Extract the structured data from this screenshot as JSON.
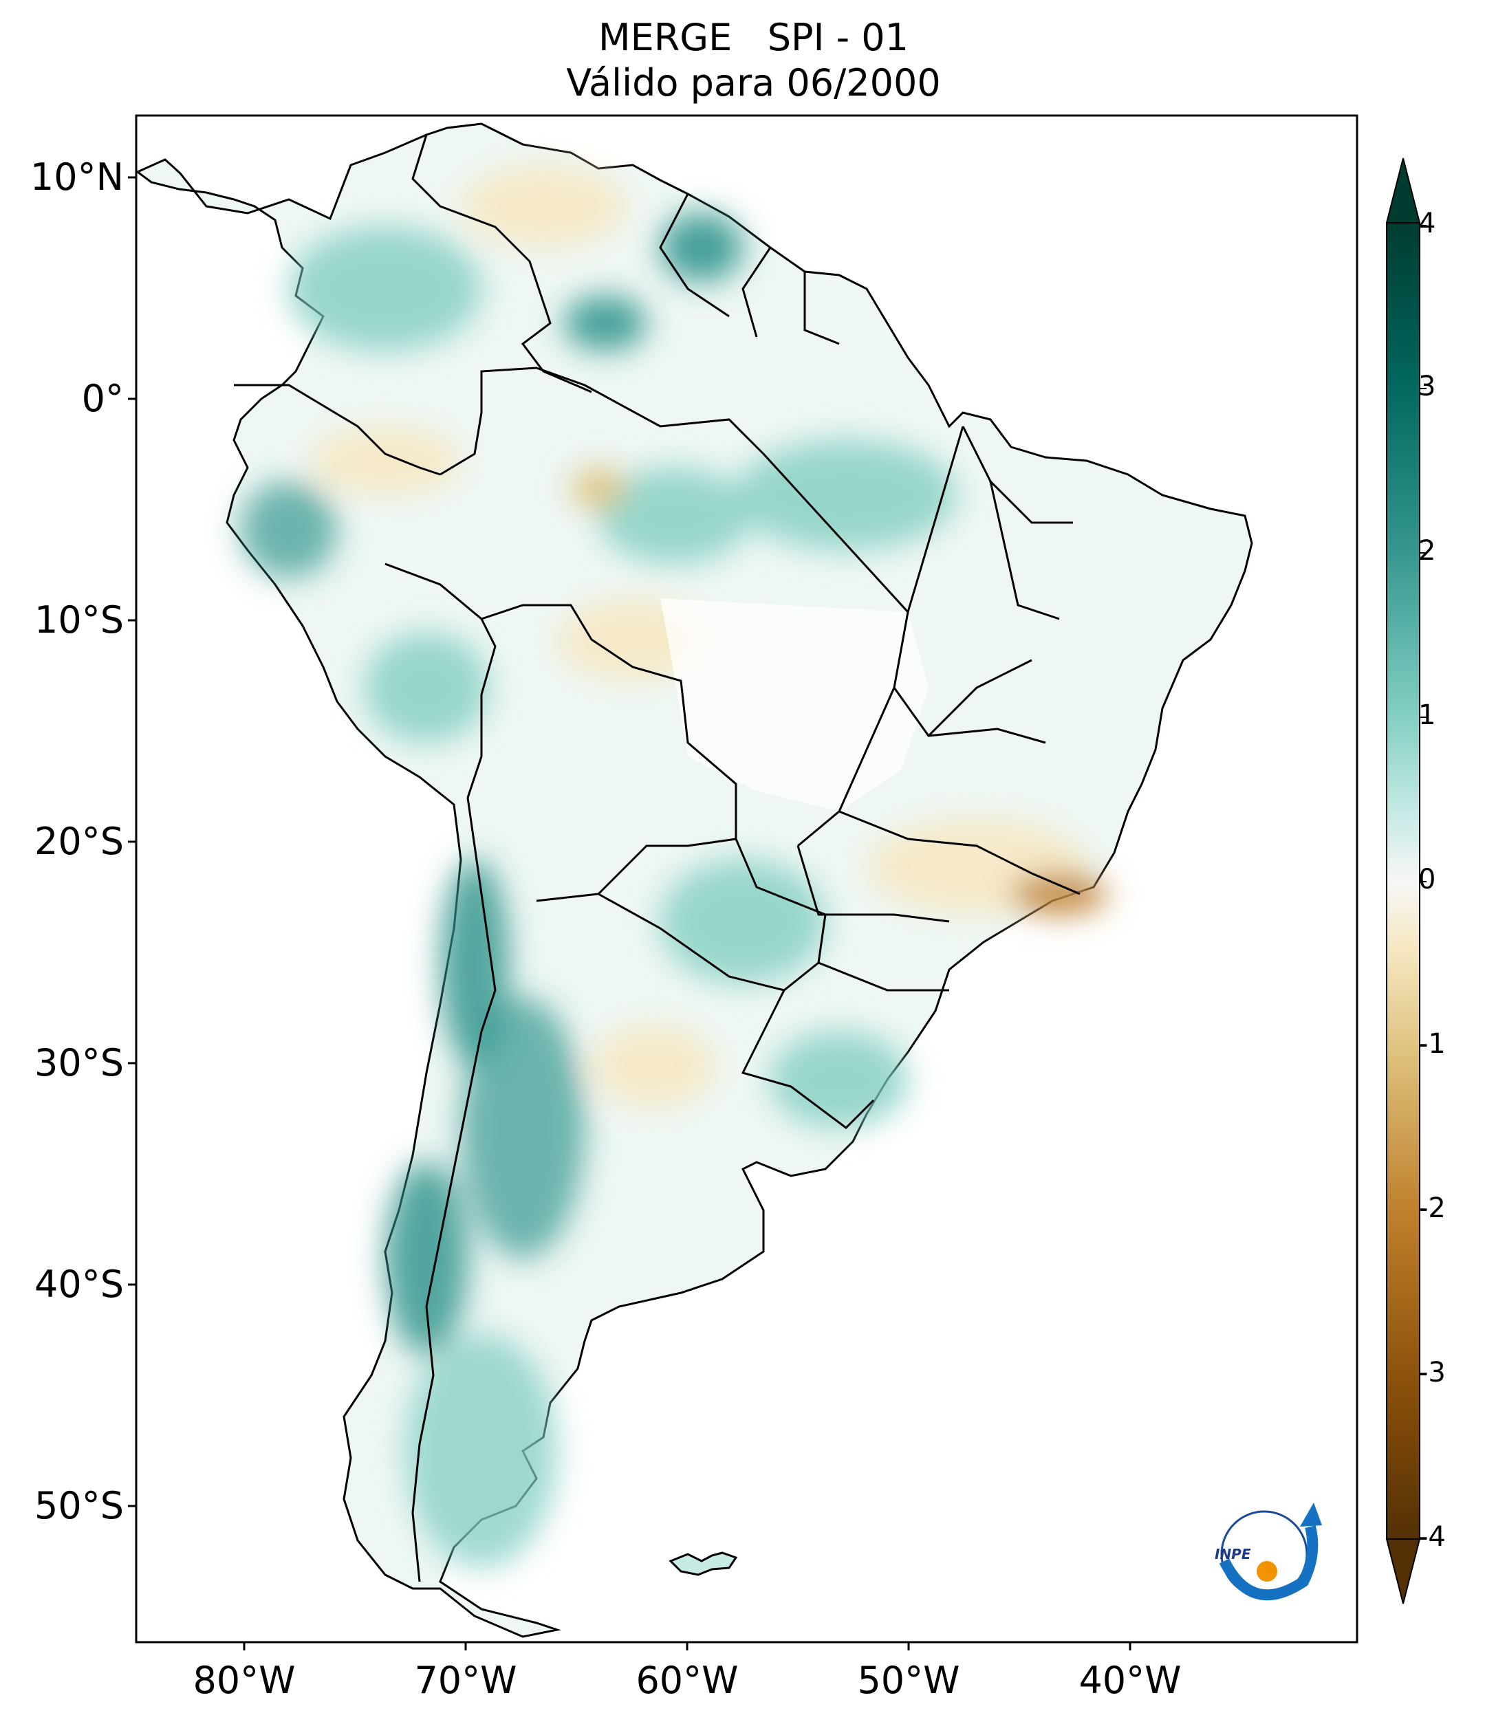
{
  "title": {
    "line1": "MERGE   SPI - 01",
    "line2": "Válido para 06/2000"
  },
  "axes": {
    "lat_ticks": [
      "10°N",
      "0°",
      "10°S",
      "20°S",
      "30°S",
      "40°S",
      "50°S"
    ],
    "lon_ticks": [
      "80°W",
      "70°W",
      "60°W",
      "50°W",
      "40°W"
    ]
  },
  "colorbar": {
    "tick_labels": [
      "4",
      "3",
      "2",
      "1",
      "0",
      "-1",
      "-2",
      "-3",
      "-4"
    ],
    "range": [
      -4,
      4
    ],
    "colors": {
      "wet_max": "#003c30",
      "wet_high": "#01665e",
      "wet_mid": "#35978f",
      "wet_low": "#80cdc1",
      "wet_pale": "#c7eae5",
      "neutral": "#f7f7f7",
      "dry_pale": "#f6e8c3",
      "dry_low": "#dfc27d",
      "dry_mid": "#bf812d",
      "dry_high": "#8c510a",
      "dry_max": "#543005"
    }
  },
  "logo": {
    "text": "INPE"
  }
}
